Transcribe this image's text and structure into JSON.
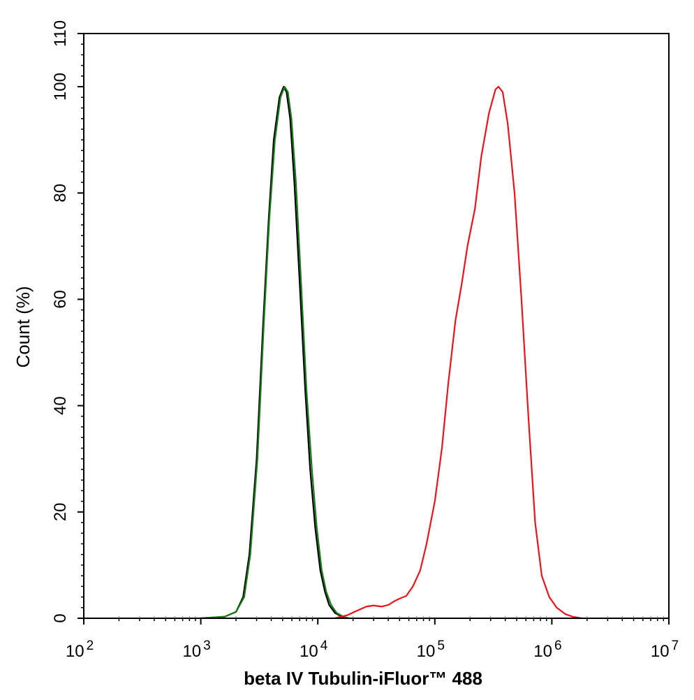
{
  "chart_data": {
    "type": "line",
    "xlabel": "beta IV Tubulin-iFluor™ 488",
    "ylabel": "Count  (%)",
    "x_scale": "log",
    "xlim": [
      100,
      10000000
    ],
    "ylim": [
      0,
      110
    ],
    "x_ticks": [
      {
        "value": 100,
        "base": "10",
        "exp": "2"
      },
      {
        "value": 1000,
        "base": "10",
        "exp": "3"
      },
      {
        "value": 10000,
        "base": "10",
        "exp": "4"
      },
      {
        "value": 100000,
        "base": "10",
        "exp": "5"
      },
      {
        "value": 1000000,
        "base": "10",
        "exp": "6"
      },
      {
        "value": 10000000,
        "base": "10",
        "exp": "7"
      }
    ],
    "y_ticks": [
      "0",
      "20",
      "40",
      "60",
      "80",
      "100",
      "110"
    ],
    "grid": false,
    "series": [
      {
        "color": "#000000",
        "points": [
          [
            1000,
            0
          ],
          [
            1600,
            0.3
          ],
          [
            2000,
            1.2
          ],
          [
            2300,
            4
          ],
          [
            2600,
            12
          ],
          [
            3000,
            30
          ],
          [
            3400,
            55
          ],
          [
            3800,
            75
          ],
          [
            4200,
            90
          ],
          [
            4700,
            98
          ],
          [
            5100,
            100
          ],
          [
            5400,
            99
          ],
          [
            5800,
            94
          ],
          [
            6300,
            82
          ],
          [
            7000,
            63
          ],
          [
            7800,
            43
          ],
          [
            8600,
            28
          ],
          [
            9500,
            17
          ],
          [
            10500,
            9
          ],
          [
            11500,
            5
          ],
          [
            12500,
            2.5
          ],
          [
            14000,
            1
          ],
          [
            16000,
            0.3
          ],
          [
            18000,
            0
          ]
        ]
      },
      {
        "color": "#1a7a1a",
        "points": [
          [
            1000,
            0
          ],
          [
            1600,
            0.3
          ],
          [
            2000,
            1.2
          ],
          [
            2350,
            4
          ],
          [
            2650,
            12
          ],
          [
            3050,
            30
          ],
          [
            3450,
            55
          ],
          [
            3850,
            75
          ],
          [
            4300,
            90
          ],
          [
            4800,
            98
          ],
          [
            5200,
            100
          ],
          [
            5550,
            99
          ],
          [
            5950,
            94
          ],
          [
            6500,
            82
          ],
          [
            7200,
            63
          ],
          [
            8000,
            43
          ],
          [
            8900,
            28
          ],
          [
            9800,
            17
          ],
          [
            10800,
            9
          ],
          [
            11800,
            5
          ],
          [
            13000,
            2.5
          ],
          [
            14500,
            1
          ],
          [
            16500,
            0.3
          ],
          [
            18500,
            0
          ]
        ]
      },
      {
        "color": "#e8141c",
        "points": [
          [
            14000,
            0
          ],
          [
            18000,
            0.6
          ],
          [
            22000,
            1.5
          ],
          [
            26000,
            2.2
          ],
          [
            30000,
            2.4
          ],
          [
            35000,
            2.2
          ],
          [
            40000,
            2.5
          ],
          [
            45000,
            3.2
          ],
          [
            50000,
            3.7
          ],
          [
            57000,
            4.2
          ],
          [
            65000,
            6
          ],
          [
            75000,
            9
          ],
          [
            85000,
            14
          ],
          [
            100000,
            22
          ],
          [
            115000,
            32
          ],
          [
            130000,
            44
          ],
          [
            150000,
            56
          ],
          [
            170000,
            63
          ],
          [
            190000,
            70
          ],
          [
            220000,
            77
          ],
          [
            250000,
            87
          ],
          [
            290000,
            95
          ],
          [
            330000,
            99.5
          ],
          [
            350000,
            100
          ],
          [
            380000,
            99
          ],
          [
            420000,
            93
          ],
          [
            480000,
            80
          ],
          [
            550000,
            60
          ],
          [
            630000,
            38
          ],
          [
            720000,
            18
          ],
          [
            820000,
            8
          ],
          [
            950000,
            4
          ],
          [
            1100000,
            2
          ],
          [
            1300000,
            0.8
          ],
          [
            1500000,
            0.3
          ],
          [
            1800000,
            0
          ]
        ]
      }
    ]
  }
}
